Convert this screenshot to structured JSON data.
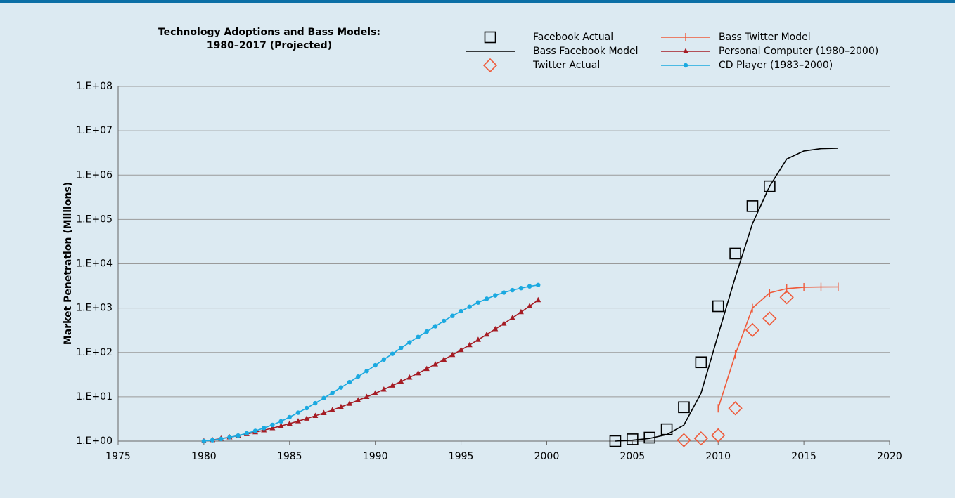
{
  "chart_data": {
    "type": "line",
    "title": [
      "Technology Adoptions and Bass Models:",
      "1980–2017 (Projected)"
    ],
    "y_label": "Market Penetration (Millions)",
    "xlim": [
      1975,
      2020
    ],
    "xticks": [
      1975,
      1980,
      1985,
      1990,
      1995,
      2000,
      2005,
      2010,
      2015,
      2020
    ],
    "ylim": [
      1,
      100000000
    ],
    "ylog": true,
    "yticks": [
      {
        "value": 1,
        "label": "1.E+00"
      },
      {
        "value": 10,
        "label": "1.E+01"
      },
      {
        "value": 100,
        "label": "1.E+02"
      },
      {
        "value": 1000,
        "label": "1.E+03"
      },
      {
        "value": 10000,
        "label": "1.E+04"
      },
      {
        "value": 100000,
        "label": "1.E+05"
      },
      {
        "value": 1000000,
        "label": "1.E+06"
      },
      {
        "value": 10000000,
        "label": "1.E+07"
      },
      {
        "value": 100000000,
        "label": "1.E+08"
      }
    ],
    "grid": true,
    "legend": "top",
    "series": [
      {
        "name": "Facebook Actual",
        "color": "#000000",
        "marker": "square",
        "line": false,
        "x": [
          2004,
          2005,
          2006,
          2007,
          2008,
          2009,
          2010,
          2011,
          2012,
          2013
        ],
        "values": [
          1.0,
          1.1,
          1.2,
          1.85,
          5.8,
          60,
          1100,
          17000,
          200000,
          560000
        ]
      },
      {
        "name": "Bass Facebook Model",
        "color": "#000000",
        "marker": null,
        "line": true,
        "x": [
          2004,
          2005,
          2006,
          2007,
          2008,
          2009,
          2010,
          2011,
          2012,
          2013,
          2014,
          2015,
          2016,
          2017
        ],
        "values": [
          1.0,
          1.05,
          1.15,
          1.4,
          2.3,
          12,
          250,
          5000,
          80000,
          560000,
          2300000,
          3500000,
          3950000,
          4050000
        ]
      },
      {
        "name": "Twitter Actual",
        "color": "#ef5a3a",
        "marker": "diamond",
        "line": false,
        "x": [
          2008,
          2009,
          2010,
          2011,
          2012,
          2013,
          2014
        ],
        "values": [
          1.05,
          1.15,
          1.35,
          5.5,
          320,
          580,
          1750
        ]
      },
      {
        "name": "Bass Twitter Model",
        "color": "#ef5a3a",
        "marker": "plus",
        "line": true,
        "x": [
          2010,
          2011,
          2012,
          2013,
          2014,
          2015,
          2016,
          2017
        ],
        "values": [
          5.5,
          90,
          1000,
          2200,
          2750,
          2950,
          2990,
          3000
        ]
      },
      {
        "name": "Personal Computer (1980–2000)",
        "color": "#a51c24",
        "marker": "triangle",
        "line": true,
        "x": [
          1980,
          1980.5,
          1981,
          1981.5,
          1982,
          1982.5,
          1983,
          1983.5,
          1984,
          1984.5,
          1985,
          1985.5,
          1986,
          1986.5,
          1987,
          1987.5,
          1988,
          1988.5,
          1989,
          1989.5,
          1990,
          1990.5,
          1991,
          1991.5,
          1992,
          1992.5,
          1993,
          1993.5,
          1994,
          1994.5,
          1995,
          1995.5,
          1996,
          1996.5,
          1997,
          1997.5,
          1998,
          1998.5,
          1999,
          1999.5
        ],
        "values": [
          1.0,
          1.06,
          1.14,
          1.22,
          1.33,
          1.45,
          1.59,
          1.76,
          1.96,
          2.2,
          2.48,
          2.82,
          3.23,
          3.72,
          4.31,
          5.03,
          5.9,
          6.99,
          8.32,
          9.97,
          12.0,
          14.6,
          17.9,
          22.0,
          27.2,
          34.0,
          42.7,
          54.0,
          68.7,
          88.0,
          114,
          147,
          193,
          254,
          336,
          448,
          601,
          813,
          1106,
          1515
        ]
      },
      {
        "name": "CD Player (1983–2000)",
        "color": "#1ba9e0",
        "marker": "circle",
        "line": true,
        "x": [
          1980,
          1980.5,
          1981,
          1981.5,
          1982,
          1982.5,
          1983,
          1983.5,
          1984,
          1984.5,
          1985,
          1985.5,
          1986,
          1986.5,
          1987,
          1987.5,
          1988,
          1988.5,
          1989,
          1989.5,
          1990,
          1990.5,
          1991,
          1991.5,
          1992,
          1992.5,
          1993,
          1993.5,
          1994,
          1994.5,
          1995,
          1995.5,
          1996,
          1996.5,
          1997,
          1997.5,
          1998,
          1998.5,
          1999,
          1999.5
        ],
        "values": [
          1.0,
          1.05,
          1.12,
          1.22,
          1.33,
          1.5,
          1.7,
          1.97,
          2.32,
          2.79,
          3.47,
          4.37,
          5.56,
          7.16,
          9.33,
          12.3,
          16.2,
          21.4,
          28.5,
          38.0,
          51.3,
          69.2,
          93.3,
          126,
          168,
          224,
          295,
          389,
          513,
          668,
          851,
          1072,
          1334,
          1622,
          1928,
          2239,
          2541,
          2818,
          3090,
          3311
        ]
      }
    ]
  }
}
